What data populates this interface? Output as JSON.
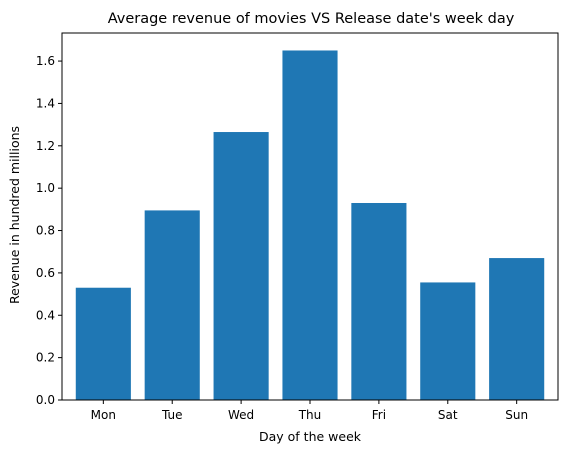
{
  "chart_data": {
    "type": "bar",
    "title": "Average revenue of movies VS Release date's week day",
    "xlabel": "Day of the week",
    "ylabel": "Revenue in hundred millions",
    "categories": [
      "Mon",
      "Tue",
      "Wed",
      "Thu",
      "Fri",
      "Sat",
      "Sun"
    ],
    "values": [
      0.53,
      0.895,
      1.265,
      1.65,
      0.93,
      0.555,
      0.67
    ],
    "ylim": [
      0,
      1.7325
    ],
    "yticks": [
      "0.0",
      "0.2",
      "0.4",
      "0.6",
      "0.8",
      "1.0",
      "1.2",
      "1.4",
      "1.6"
    ],
    "bar_color": "#1f77b4",
    "grid": false,
    "legend": "none"
  }
}
